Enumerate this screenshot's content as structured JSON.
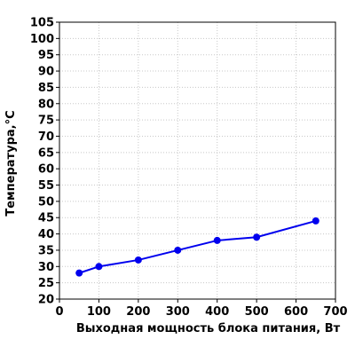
{
  "chart_data": {
    "type": "line",
    "xlabel": "Выходная мощность блока питания, Вт",
    "ylabel": "Температура,°C",
    "xlim": [
      0,
      700
    ],
    "ylim": [
      20,
      105
    ],
    "xticks": [
      0,
      100,
      200,
      300,
      400,
      500,
      600,
      700
    ],
    "yticks": [
      20,
      25,
      30,
      35,
      40,
      45,
      50,
      55,
      60,
      65,
      70,
      75,
      80,
      85,
      90,
      95,
      100,
      105
    ],
    "grid": true,
    "series": [
      {
        "color": "#0000ee",
        "x": [
          50,
          100,
          200,
          300,
          400,
          500,
          650
        ],
        "y": [
          28,
          30,
          32,
          35,
          38,
          39,
          44
        ]
      }
    ]
  }
}
